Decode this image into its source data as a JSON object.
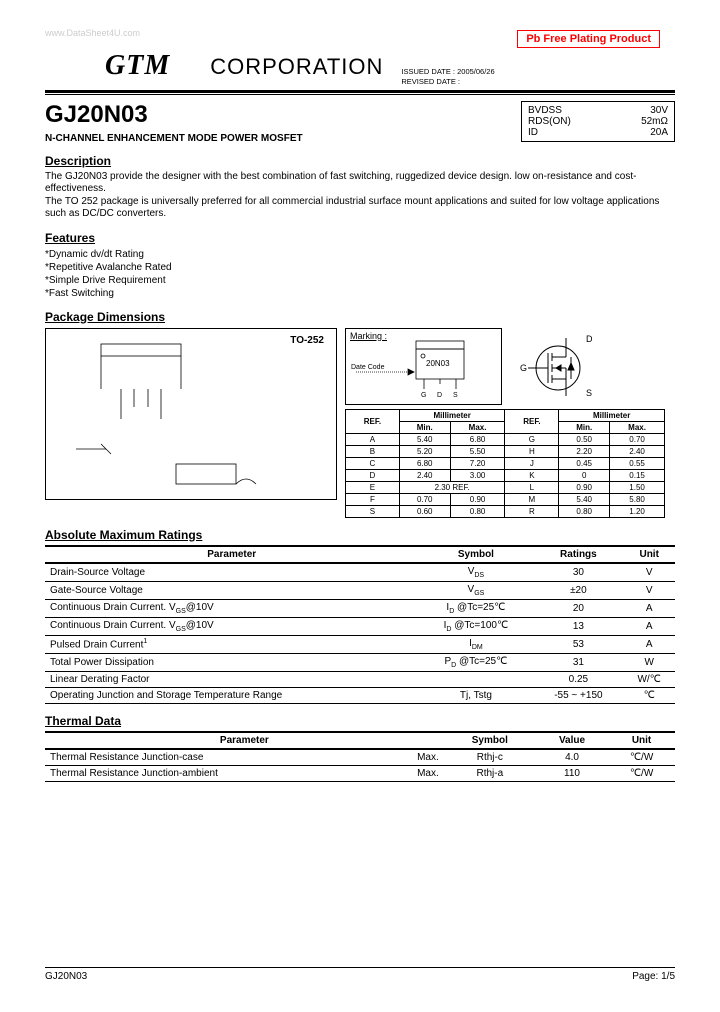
{
  "watermark": "www.DataSheet4U.com",
  "pb_free": "Pb Free Plating Product",
  "company_bold": "GTM",
  "company_rest": "CORPORATION",
  "issued_label": "ISSUED DATE :",
  "issued_date": "2005/06/26",
  "revised_label": "REVISED DATE :",
  "part_number": "GJ20N03",
  "product_type": "N-CHANNEL ENHANCEMENT MODE POWER MOSFET",
  "keybox": [
    {
      "label": "BVDSS",
      "value": "30V"
    },
    {
      "label": "RDS(ON)",
      "value": "52mΩ"
    },
    {
      "label": "ID",
      "value": "20A"
    }
  ],
  "description_head": "Description",
  "description_text": "The GJ20N03 provide the designer with the best combination of fast switching, ruggedized device design. low on-resistance and cost-effectiveness.\nThe TO 252 package is universally preferred for all commercial industrial surface mount applications and suited for low voltage applications such as DC/DC converters.",
  "features_head": "Features",
  "features": [
    "*Dynamic dv/dt Rating",
    "*Repetitive Avalanche Rated",
    "*Simple Drive Requirement",
    "*Fast Switching"
  ],
  "pkg_head": "Package Dimensions",
  "to252_label": "TO-252",
  "marking_label": "Marking :",
  "marking_part": "20N03",
  "date_code_label": "Date Code",
  "pins": {
    "g": "G",
    "d": "D",
    "s": "S"
  },
  "dim_header": {
    "ref": "REF.",
    "mm": "Millimeter",
    "min": "Min.",
    "max": "Max."
  },
  "dim_rows_left": [
    {
      "ref": "A",
      "min": "5.40",
      "max": "6.80"
    },
    {
      "ref": "B",
      "min": "5.20",
      "max": "5.50"
    },
    {
      "ref": "C",
      "min": "6.80",
      "max": "7.20"
    },
    {
      "ref": "D",
      "min": "2.40",
      "max": "3.00"
    },
    {
      "ref": "E",
      "min": "2.30 REF.",
      "max": ""
    },
    {
      "ref": "F",
      "min": "0.70",
      "max": "0.90"
    },
    {
      "ref": "S",
      "min": "0.60",
      "max": "0.80"
    }
  ],
  "dim_rows_right": [
    {
      "ref": "G",
      "min": "0.50",
      "max": "0.70"
    },
    {
      "ref": "H",
      "min": "2.20",
      "max": "2.40"
    },
    {
      "ref": "J",
      "min": "0.45",
      "max": "0.55"
    },
    {
      "ref": "K",
      "min": "0",
      "max": "0.15"
    },
    {
      "ref": "L",
      "min": "0.90",
      "max": "1.50"
    },
    {
      "ref": "M",
      "min": "5.40",
      "max": "5.80"
    },
    {
      "ref": "R",
      "min": "0.80",
      "max": "1.20"
    }
  ],
  "abs_head": "Absolute Maximum Ratings",
  "abs_columns": [
    "Parameter",
    "Symbol",
    "Ratings",
    "Unit"
  ],
  "abs_rows": [
    {
      "param": "Drain-Source Voltage",
      "symbol": "V<sub>DS</sub>",
      "rating": "30",
      "unit": "V"
    },
    {
      "param": "Gate-Source Voltage",
      "symbol": "V<sub>GS</sub>",
      "rating": "±20",
      "unit": "V"
    },
    {
      "param": "Continuous Drain Current. V<sub>GS</sub>@10V",
      "symbol": "I<sub>D</sub> @Tc=25℃",
      "rating": "20",
      "unit": "A"
    },
    {
      "param": "Continuous Drain Current. V<sub>GS</sub>@10V",
      "symbol": "I<sub>D</sub> @Tc=100℃",
      "rating": "13",
      "unit": "A"
    },
    {
      "param": "Pulsed Drain Current<sup>1</sup>",
      "symbol": "I<sub>DM</sub>",
      "rating": "53",
      "unit": "A"
    },
    {
      "param": "Total Power Dissipation",
      "symbol": "P<sub>D</sub> @Tc=25℃",
      "rating": "31",
      "unit": "W"
    },
    {
      "param": "Linear Derating Factor",
      "symbol": "",
      "rating": "0.25",
      "unit": "W/℃"
    },
    {
      "param": "Operating Junction and Storage Temperature Range",
      "symbol": "Tj, Tstg",
      "rating": "-55 ~ +150",
      "unit": "℃"
    }
  ],
  "thermal_head": "Thermal Data",
  "thermal_columns": [
    "Parameter",
    "Symbol",
    "Value",
    "Unit"
  ],
  "thermal_rows": [
    {
      "param": "Thermal Resistance Junction-case",
      "cond": "Max.",
      "symbol": "Rthj-c",
      "value": "4.0",
      "unit": "℃/W"
    },
    {
      "param": "Thermal Resistance Junction-ambient",
      "cond": "Max.",
      "symbol": "Rthj-a",
      "value": "110",
      "unit": "℃/W"
    }
  ],
  "footer_left": "GJ20N03",
  "footer_right": "Page: 1/5"
}
